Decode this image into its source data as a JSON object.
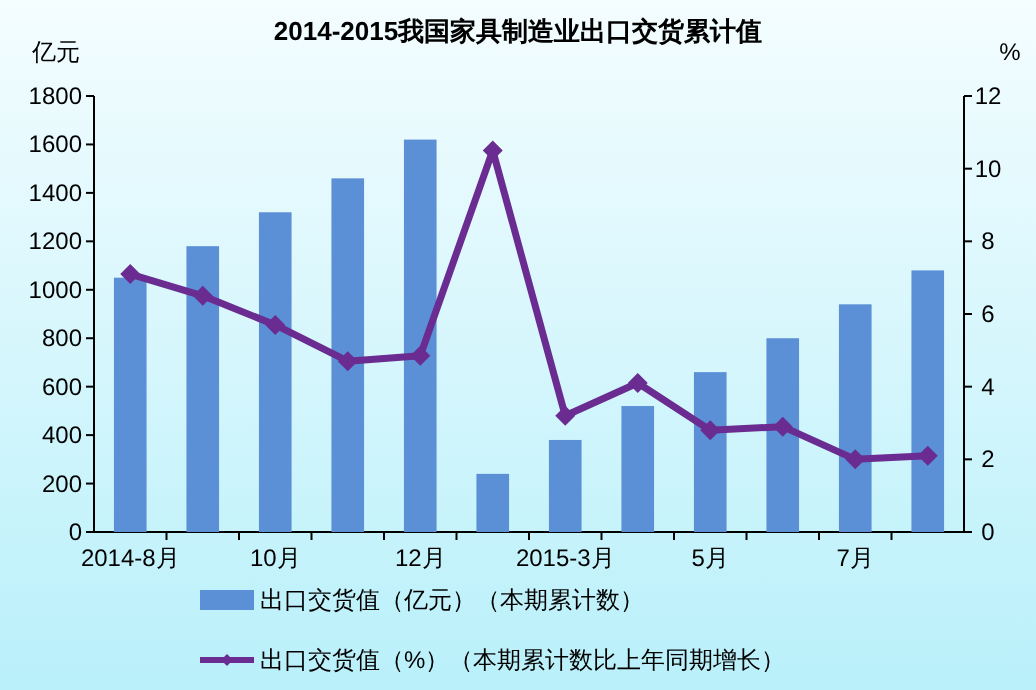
{
  "chart_data": {
    "type": "bar",
    "title": "2014-2015我国家具制造业出口交货累计值",
    "ylabel": "亿元",
    "y2label": "%",
    "categories": [
      "2014-8月",
      null,
      "10月",
      null,
      "12月",
      null,
      "2015-3月",
      null,
      "5月",
      null,
      "7月",
      null
    ],
    "series": [
      {
        "name": "出口交货值（亿元）（本期累计数）",
        "color": "#5b8fd6",
        "values": [
          1050,
          1180,
          1320,
          1460,
          1620,
          240,
          380,
          520,
          660,
          800,
          940,
          1080
        ]
      },
      {
        "name": "出口交货值（%）（本期累计数比上年同期增长）",
        "type": "line",
        "axis": "y2",
        "color": "#6a2c91",
        "marker": "diamond",
        "values": [
          7.1,
          6.5,
          5.7,
          4.7,
          4.85,
          10.5,
          3.2,
          4.1,
          2.8,
          2.9,
          2.0,
          2.1
        ]
      }
    ],
    "ylim": [
      0,
      1800
    ],
    "yticks": [
      0,
      200,
      400,
      600,
      800,
      1000,
      1200,
      1400,
      1600,
      1800
    ],
    "y2lim": [
      0,
      12
    ],
    "y2ticks": [
      0,
      2,
      4,
      6,
      8,
      10,
      12
    ],
    "grid": false,
    "legend": "bottom"
  }
}
